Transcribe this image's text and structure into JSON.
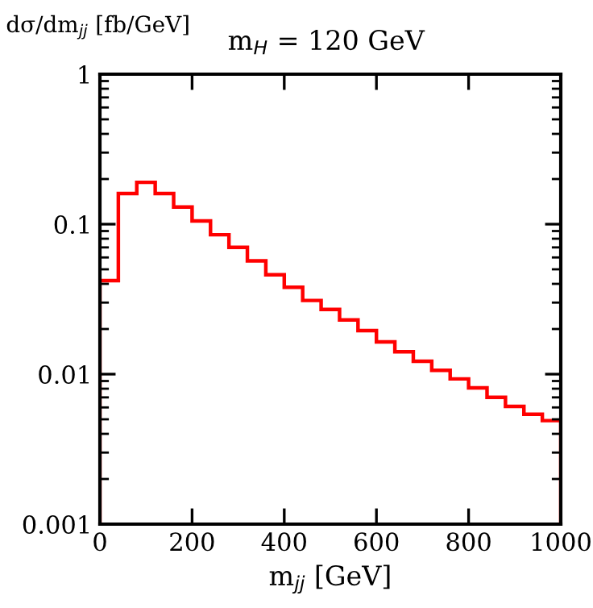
{
  "chart_data": {
    "type": "histogram",
    "title": "m$_{H}$ = 120 GeV",
    "ylabel": "dσ/dm$_{jj}$ [fb/GeV]",
    "xlabel": "m$_{jj}$ [GeV]",
    "bins": [
      0,
      40,
      80,
      120,
      160,
      200,
      240,
      280,
      320,
      360,
      400,
      440,
      480,
      520,
      560,
      600,
      640,
      680,
      720,
      760,
      800,
      840,
      880,
      920,
      960,
      1000
    ],
    "values": [
      0.042,
      0.16,
      0.19,
      0.16,
      0.13,
      0.105,
      0.085,
      0.07,
      0.057,
      0.046,
      0.038,
      0.031,
      0.027,
      0.023,
      0.0195,
      0.0164,
      0.0141,
      0.0122,
      0.0106,
      0.0093,
      0.0081,
      0.007,
      0.0061,
      0.0054,
      0.0049
    ],
    "color": "#ff0000",
    "log": "y",
    "xlim": [
      0,
      1000
    ],
    "ylim": [
      0.001,
      1
    ],
    "xticks": [
      0,
      200,
      400,
      600,
      800,
      1000
    ],
    "yticks": [
      0.001,
      0.01,
      0.1,
      1
    ],
    "grid": false,
    "legend": false
  }
}
